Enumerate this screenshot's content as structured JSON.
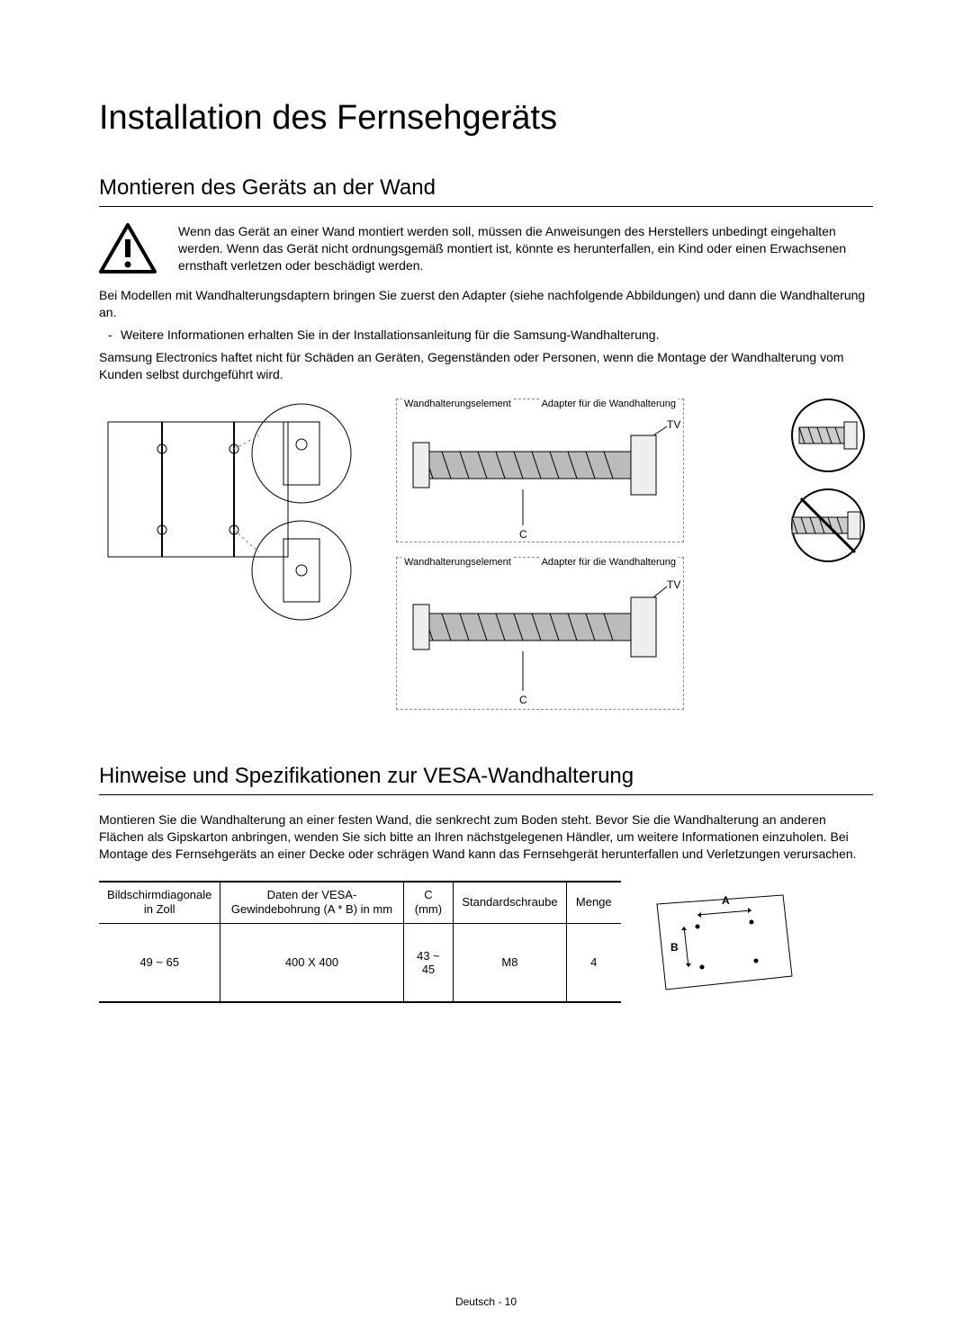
{
  "title": "Installation des Fernsehgeräts",
  "section1": {
    "heading": "Montieren des Geräts an der Wand",
    "warning": "Wenn das Gerät an einer Wand montiert werden soll, müssen die Anweisungen des Herstellers unbedingt eingehalten werden. Wenn das Gerät nicht ordnungsgemäß montiert ist, könnte es herunterfallen, ein Kind oder einen Erwachsenen ernsthaft verletzen oder beschädigt werden.",
    "para1": "Bei Modellen mit Wandhalterungsdaptern bringen Sie zuerst den Adapter (siehe nachfolgende Abbildungen) und dann die Wandhalterung an.",
    "bullet1": "Weitere Informationen erhalten Sie in der Installationsanleitung für die Samsung-Wandhalterung.",
    "para2": "Samsung Electronics haftet nicht für Schäden an Geräten, Gegenständen oder Personen, wenn die Montage der Wandhalterung vom Kunden selbst durchgeführt wird."
  },
  "diagram": {
    "label_wandhalterungselement": "Wandhalterungselement",
    "label_adapter": "Adapter für die Wandhalterung",
    "label_tv": "TV",
    "label_c": "C"
  },
  "section2": {
    "heading": "Hinweise und Spezifikationen zur VESA-Wandhalterung",
    "para": "Montieren Sie die Wandhalterung an einer festen Wand, die senkrecht zum Boden steht. Bevor Sie die Wandhalterung an anderen Flächen als Gipskarton anbringen, wenden Sie sich bitte an Ihren nächstgelegenen Händler, um weitere Informationen einzuholen. Bei Montage des Fernsehgeräts an einer Decke oder schrägen Wand kann das Fernsehgerät herunterfallen und Verletzungen verursachen."
  },
  "table": {
    "columns": [
      "Bildschirmdiagonale in Zoll",
      "Daten der VESA-Gewindebohrung (A * B) in mm",
      "C (mm)",
      "Standardschraube",
      "Menge"
    ],
    "row": [
      "49 ~ 65",
      "400 X 400",
      "43 ~ 45",
      "M8",
      "4"
    ],
    "col_widths": [
      "120px",
      "200px",
      "55px",
      "120px",
      "60px"
    ]
  },
  "vesa_labels": {
    "a": "A",
    "b": "B"
  },
  "footer": "Deutsch - 10",
  "colors": {
    "text": "#000000",
    "bg": "#ffffff",
    "dash": "#888888"
  }
}
